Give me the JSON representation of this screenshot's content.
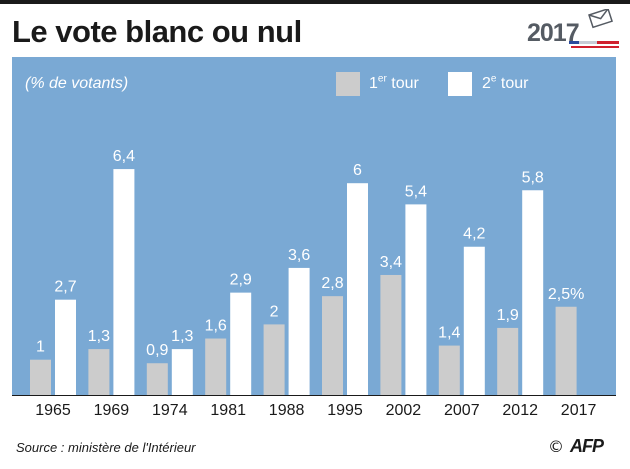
{
  "header": {
    "title": "Le vote blanc ou nul",
    "logo_year": "2017",
    "logo_icon": "ballot-envelope-icon"
  },
  "colors": {
    "plot_bg": "#7aa9d4",
    "round1": "#cccccc",
    "round2": "#ffffff",
    "label": "#ffffff",
    "axis_text": "#1a1a1a",
    "flag_blue": "#2b4a9c",
    "flag_red": "#d0202e"
  },
  "legend": {
    "round1_num": "1",
    "round1_sup": "er",
    "round1_word": " tour",
    "round2_num": "2",
    "round2_sup": "e",
    "round2_word": " tour",
    "position": "top-right"
  },
  "chart_data": {
    "type": "bar",
    "title": "Le vote blanc ou nul",
    "ylabel": "(% de votants)",
    "xlabel": "",
    "ylim": [
      0,
      7.6
    ],
    "grid": false,
    "categories": [
      "1965",
      "1969",
      "1974",
      "1981",
      "1988",
      "1995",
      "2002",
      "2007",
      "2012",
      "2017"
    ],
    "series": [
      {
        "name": "1er tour",
        "values": [
          1,
          1.3,
          0.9,
          1.6,
          2,
          2.8,
          3.4,
          1.4,
          1.9,
          2.5
        ],
        "labels": [
          "1",
          "1,3",
          "0,9",
          "1,6",
          "2",
          "2,8",
          "3,4",
          "1,4",
          "1,9",
          "2,5%"
        ]
      },
      {
        "name": "2e tour",
        "values": [
          2.7,
          6.4,
          1.3,
          2.9,
          3.6,
          6,
          5.4,
          4.2,
          5.8,
          null
        ],
        "labels": [
          "2,7",
          "6,4",
          "1,3",
          "2,9",
          "3,6",
          "6",
          "5,4",
          "4,2",
          "5,8",
          null
        ]
      }
    ]
  },
  "footer": {
    "source": "Source : ministère de l'Intérieur",
    "copyright_symbol": "©",
    "agency": "AFP"
  }
}
